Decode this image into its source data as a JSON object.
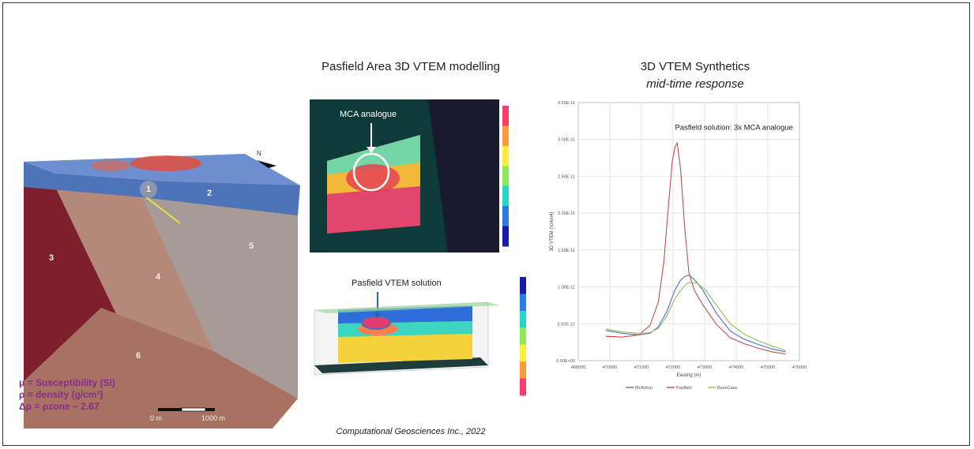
{
  "titles": {
    "left_panel": "Pasfield Area 3D VTEM modelling",
    "right_panel_line1": "3D VTEM Synthetics",
    "right_panel_line2": "mid-time response"
  },
  "credit": "Computational Geosciences Inc., 2022",
  "block_model": {
    "zone_labels": [
      "1",
      "2",
      "3",
      "4",
      "5",
      "6"
    ],
    "north_arrow": "N",
    "scale_bar": {
      "left_label": "0 m",
      "right_label": "1000 m"
    },
    "legend": [
      "μ = Susceptibility (SI)",
      "ρ = density (g/cm³)",
      "Δρ = ρzone − 2.67"
    ]
  },
  "top_image": {
    "annotation": "MCA analogue",
    "colorbar_colors": [
      "#ff3b6b",
      "#ff9a3c",
      "#ffee3c",
      "#8fe85a",
      "#22d6c8",
      "#2a7de0",
      "#1a1aa8"
    ]
  },
  "bottom_image": {
    "annotation": "Pasfield VTEM solution"
  },
  "chart_data": {
    "type": "line",
    "title": "",
    "annotation": "Pasfield solution: 3x MCA analogue",
    "xlabel": "Easting (m)",
    "ylabel": "3D VTEM (V/Am4)",
    "xlim": [
      468000,
      476000
    ],
    "ylim": [
      0,
      3.5e-11
    ],
    "x_ticks": [
      "468000",
      "470000",
      "471000",
      "472000",
      "473000",
      "474000",
      "475000",
      "476000"
    ],
    "y_ticks": [
      "0.00E+00",
      "5.00E-12",
      "1.00E-11",
      "1.50E-11",
      "2.00E-11",
      "2.50E-11",
      "3.00E-11",
      "3.50E-11"
    ],
    "grid": true,
    "legend_position": "bottom",
    "series": [
      {
        "name": "McArthur",
        "color": "#4472c4",
        "x": [
          469000,
          469600,
          470200,
          470600,
          470900,
          471200,
          471500,
          471700,
          471850,
          472000,
          472200,
          472500,
          473000,
          473500,
          474000,
          474500,
          475000,
          475500
        ],
        "y": [
          4.1e-12,
          3.7e-12,
          3.5e-12,
          3.7e-12,
          4.6e-12,
          6.6e-12,
          9.6e-12,
          1.09e-11,
          1.14e-11,
          1.16e-11,
          1.1e-11,
          9.6e-12,
          6.4e-12,
          4e-12,
          2.9e-12,
          2.2e-12,
          1.6e-12,
          1.2e-12
        ]
      },
      {
        "name": "Pasfield",
        "color": "#c0504d",
        "x": [
          469000,
          469600,
          470200,
          470600,
          470900,
          471100,
          471250,
          471400,
          471500,
          471580,
          471700,
          471850,
          472000,
          472200,
          472500,
          473000,
          473500,
          474000,
          474500,
          475000,
          475500
        ],
        "y": [
          3.3e-12,
          3.2e-12,
          3.5e-12,
          4.8e-12,
          8e-12,
          1.35e-11,
          2.05e-11,
          2.7e-11,
          2.9e-11,
          2.95e-11,
          2.6e-11,
          1.8e-11,
          1.2e-11,
          9.5e-12,
          7.6e-12,
          4.9e-12,
          3.1e-12,
          2.3e-12,
          1.7e-12,
          1.2e-12,
          9e-13
        ]
      },
      {
        "name": "BaseCase",
        "color": "#9bbb59",
        "x": [
          469000,
          469600,
          470200,
          470600,
          470900,
          471200,
          471500,
          471800,
          472000,
          472300,
          472600,
          473000,
          473500,
          474000,
          474500,
          475000,
          475500
        ],
        "y": [
          4.3e-12,
          3.9e-12,
          3.7e-12,
          3.8e-12,
          4.4e-12,
          6e-12,
          8.4e-12,
          1e-11,
          1.06e-11,
          1.05e-11,
          9.6e-12,
          7.5e-12,
          5e-12,
          3.6e-12,
          2.7e-12,
          2e-12,
          1.4e-12
        ]
      }
    ]
  }
}
